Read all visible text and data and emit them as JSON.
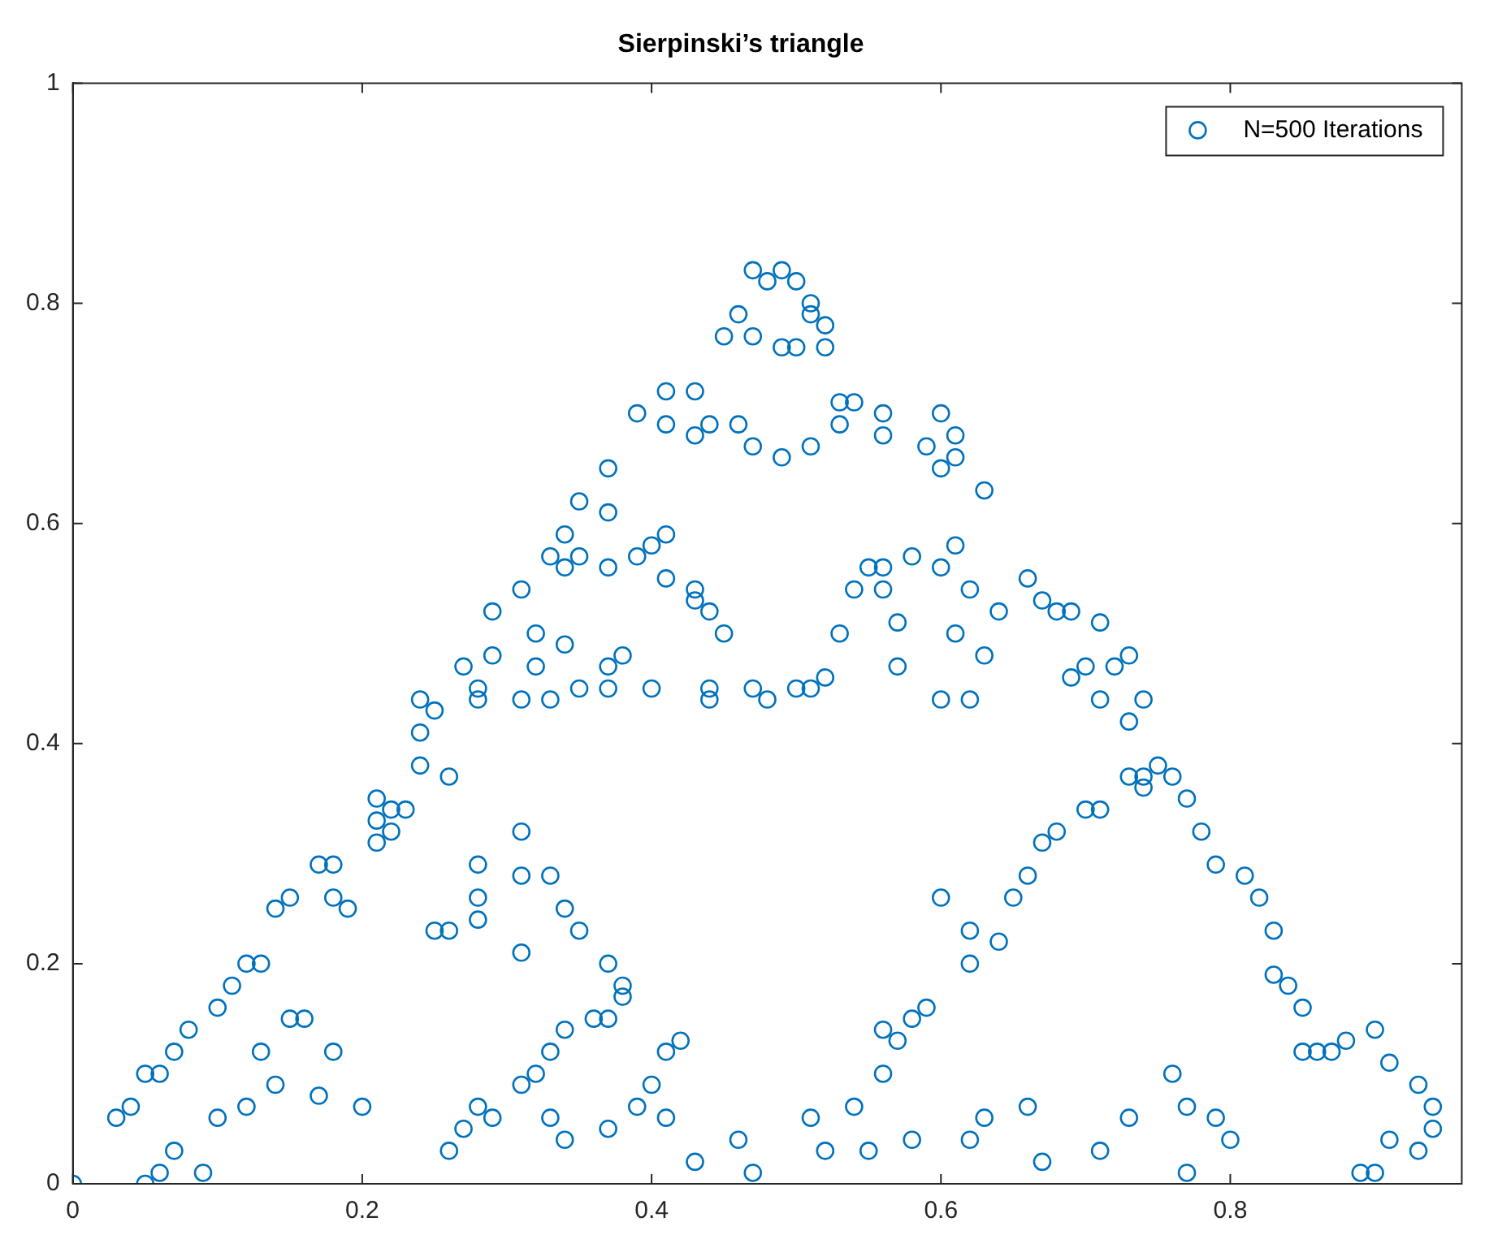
{
  "chart_data": {
    "type": "scatter",
    "title": "Sierpinski’s triangle",
    "xlim": [
      0,
      0.96
    ],
    "ylim": [
      0,
      1
    ],
    "xticks": [
      0,
      0.2,
      0.4,
      0.6,
      0.8
    ],
    "yticks": [
      0,
      0.2,
      0.4,
      0.6,
      0.8,
      1
    ],
    "grid": false,
    "legend": "top right",
    "marker": "circle",
    "series": [
      {
        "name": "N=500 Iterations",
        "color": "#0072bd",
        "x": [
          0.47,
          0.48,
          0.49,
          0.5,
          0.51,
          0.51,
          0.47,
          0.46,
          0.45,
          0.49,
          0.52,
          0.52,
          0.5,
          0.41,
          0.43,
          0.39,
          0.41,
          0.43,
          0.44,
          0.46,
          0.47,
          0.49,
          0.51,
          0.53,
          0.54,
          0.53,
          0.56,
          0.56,
          0.59,
          0.6,
          0.61,
          0.6,
          0.61,
          0.63,
          0.35,
          0.37,
          0.37,
          0.35,
          0.34,
          0.33,
          0.34,
          0.37,
          0.39,
          0.4,
          0.41,
          0.41,
          0.43,
          0.44,
          0.43,
          0.45,
          0.44,
          0.44,
          0.47,
          0.48,
          0.5,
          0.51,
          0.52,
          0.53,
          0.54,
          0.55,
          0.56,
          0.56,
          0.57,
          0.58,
          0.6,
          0.61,
          0.62,
          0.64,
          0.61,
          0.6,
          0.57,
          0.62,
          0.63,
          0.31,
          0.29,
          0.29,
          0.28,
          0.27,
          0.28,
          0.31,
          0.32,
          0.32,
          0.33,
          0.34,
          0.35,
          0.37,
          0.37,
          0.38,
          0.4,
          0.66,
          0.67,
          0.68,
          0.69,
          0.71,
          0.69,
          0.7,
          0.71,
          0.72,
          0.73,
          0.74,
          0.73,
          0.75,
          0.74,
          0.24,
          0.24,
          0.25,
          0.24,
          0.26,
          0.23,
          0.22,
          0.21,
          0.21,
          0.22,
          0.21,
          0.18,
          0.18,
          0.19,
          0.17,
          0.15,
          0.14,
          0.13,
          0.12,
          0.11,
          0.1,
          0.08,
          0.07,
          0.06,
          0.05,
          0.04,
          0.03,
          0.13,
          0.15,
          0.16,
          0.18,
          0.2,
          0.17,
          0.14,
          0.12,
          0.1,
          0.07,
          0.06,
          0.09,
          0.05,
          0.0,
          0.25,
          0.26,
          0.28,
          0.28,
          0.31,
          0.28,
          0.31,
          0.31,
          0.33,
          0.34,
          0.35,
          0.37,
          0.38,
          0.38,
          0.37,
          0.36,
          0.34,
          0.33,
          0.32,
          0.31,
          0.28,
          0.27,
          0.26,
          0.29,
          0.33,
          0.34,
          0.37,
          0.39,
          0.4,
          0.41,
          0.42,
          0.41,
          0.43,
          0.46,
          0.47,
          0.6,
          0.62,
          0.62,
          0.64,
          0.65,
          0.66,
          0.67,
          0.68,
          0.7,
          0.71,
          0.73,
          0.74,
          0.76,
          0.77,
          0.78,
          0.79,
          0.81,
          0.82,
          0.83,
          0.83,
          0.84,
          0.85,
          0.85,
          0.86,
          0.87,
          0.88,
          0.9,
          0.91,
          0.93,
          0.94,
          0.94,
          0.93,
          0.91,
          0.9,
          0.89,
          0.8,
          0.76,
          0.77,
          0.79,
          0.77,
          0.73,
          0.71,
          0.67,
          0.66,
          0.63,
          0.62,
          0.58,
          0.55,
          0.52,
          0.51,
          0.54,
          0.56,
          0.57,
          0.58,
          0.59,
          0.56
        ],
        "values": [
          0.83,
          0.82,
          0.83,
          0.82,
          0.8,
          0.79,
          0.77,
          0.79,
          0.77,
          0.76,
          0.76,
          0.78,
          0.76,
          0.72,
          0.72,
          0.7,
          0.69,
          0.68,
          0.69,
          0.69,
          0.67,
          0.66,
          0.67,
          0.71,
          0.71,
          0.69,
          0.7,
          0.68,
          0.67,
          0.7,
          0.68,
          0.65,
          0.66,
          0.63,
          0.62,
          0.65,
          0.61,
          0.57,
          0.59,
          0.57,
          0.56,
          0.56,
          0.57,
          0.58,
          0.59,
          0.55,
          0.54,
          0.52,
          0.53,
          0.5,
          0.44,
          0.45,
          0.45,
          0.44,
          0.45,
          0.45,
          0.46,
          0.5,
          0.54,
          0.56,
          0.54,
          0.56,
          0.51,
          0.57,
          0.56,
          0.58,
          0.54,
          0.52,
          0.5,
          0.44,
          0.47,
          0.44,
          0.48,
          0.54,
          0.52,
          0.48,
          0.45,
          0.47,
          0.44,
          0.44,
          0.5,
          0.47,
          0.44,
          0.49,
          0.45,
          0.45,
          0.47,
          0.48,
          0.45,
          0.55,
          0.53,
          0.52,
          0.52,
          0.51,
          0.46,
          0.47,
          0.44,
          0.47,
          0.48,
          0.44,
          0.42,
          0.38,
          0.37,
          0.44,
          0.41,
          0.43,
          0.38,
          0.37,
          0.34,
          0.34,
          0.35,
          0.33,
          0.32,
          0.31,
          0.29,
          0.26,
          0.25,
          0.29,
          0.26,
          0.25,
          0.2,
          0.2,
          0.18,
          0.16,
          0.14,
          0.12,
          0.1,
          0.1,
          0.07,
          0.06,
          0.12,
          0.15,
          0.15,
          0.12,
          0.07,
          0.08,
          0.09,
          0.07,
          0.06,
          0.03,
          0.01,
          0.01,
          0.0,
          0.0,
          0.23,
          0.23,
          0.26,
          0.29,
          0.32,
          0.24,
          0.21,
          0.28,
          0.28,
          0.25,
          0.23,
          0.2,
          0.18,
          0.17,
          0.15,
          0.15,
          0.14,
          0.12,
          0.1,
          0.09,
          0.07,
          0.05,
          0.03,
          0.06,
          0.06,
          0.04,
          0.05,
          0.07,
          0.09,
          0.12,
          0.13,
          0.06,
          0.02,
          0.04,
          0.01,
          0.26,
          0.23,
          0.2,
          0.22,
          0.26,
          0.28,
          0.31,
          0.32,
          0.34,
          0.34,
          0.37,
          0.36,
          0.37,
          0.35,
          0.32,
          0.29,
          0.28,
          0.26,
          0.23,
          0.19,
          0.18,
          0.16,
          0.12,
          0.12,
          0.12,
          0.13,
          0.14,
          0.11,
          0.09,
          0.07,
          0.05,
          0.03,
          0.04,
          0.01,
          0.01,
          0.04,
          0.1,
          0.07,
          0.06,
          0.01,
          0.06,
          0.03,
          0.02,
          0.07,
          0.06,
          0.04,
          0.04,
          0.03,
          0.03,
          0.06,
          0.07,
          0.1,
          0.13,
          0.15,
          0.16,
          0.14
        ]
      }
    ]
  }
}
